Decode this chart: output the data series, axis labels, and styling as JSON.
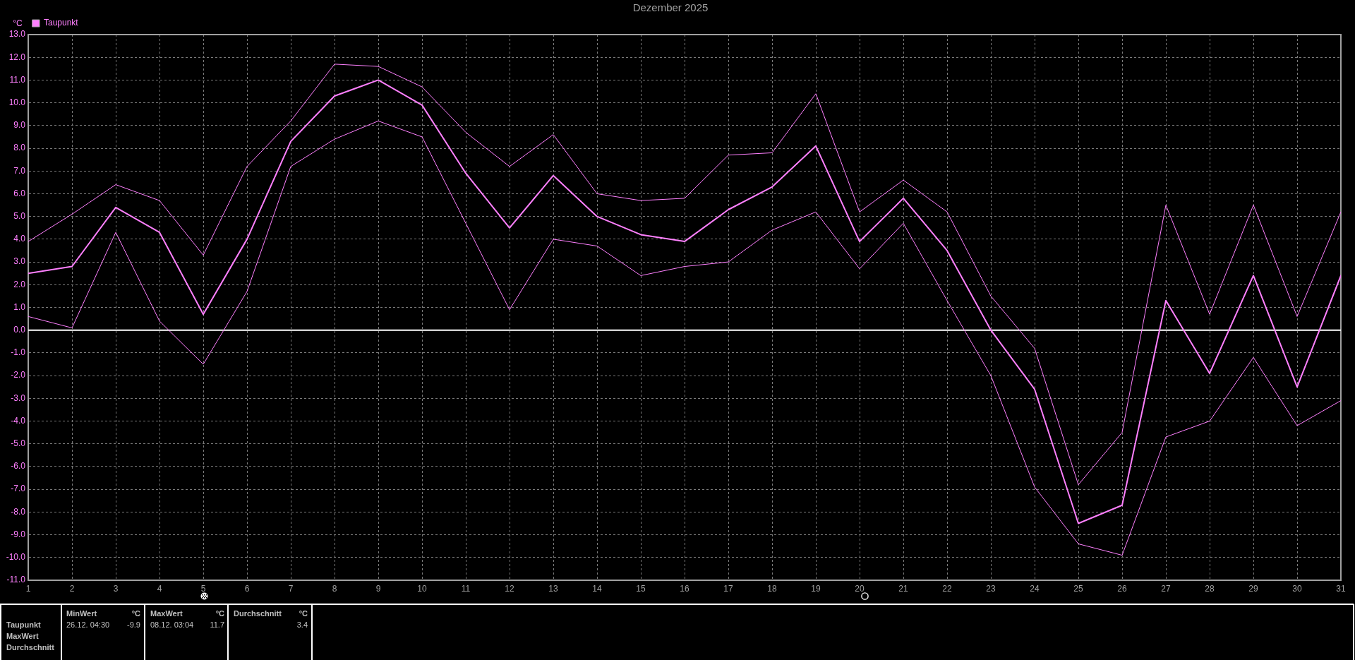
{
  "chart_data": {
    "type": "line",
    "title": "Dezember 2025",
    "ylabel": "°C",
    "x": [
      1,
      2,
      3,
      4,
      5,
      6,
      7,
      8,
      9,
      10,
      11,
      12,
      13,
      14,
      15,
      16,
      17,
      18,
      19,
      20,
      21,
      22,
      23,
      24,
      25,
      26,
      27,
      28,
      29,
      30,
      31
    ],
    "xlim": [
      1,
      31
    ],
    "xticks": [
      1,
      2,
      3,
      4,
      5,
      6,
      7,
      8,
      9,
      10,
      11,
      12,
      13,
      14,
      15,
      16,
      17,
      18,
      19,
      20,
      21,
      22,
      23,
      24,
      25,
      26,
      27,
      28,
      29,
      30,
      31
    ],
    "ylim": [
      -11,
      13
    ],
    "yticks": [
      {
        "value": -11,
        "label": "-11.0"
      },
      {
        "value": -10,
        "label": "-10.0"
      },
      {
        "value": -9,
        "label": "-9.0"
      },
      {
        "value": -8,
        "label": "-8.0"
      },
      {
        "value": -7,
        "label": "-7.0"
      },
      {
        "value": -6,
        "label": "-6.0"
      },
      {
        "value": -5,
        "label": "-5.0"
      },
      {
        "value": -4,
        "label": "-4.0"
      },
      {
        "value": -3,
        "label": "-3.0"
      },
      {
        "value": -2,
        "label": "-2.0"
      },
      {
        "value": -1,
        "label": "-1.0"
      },
      {
        "value": 0,
        "label": "0.0"
      },
      {
        "value": 1,
        "label": "1.0"
      },
      {
        "value": 2,
        "label": "2.0"
      },
      {
        "value": 3,
        "label": "3.0"
      },
      {
        "value": 4,
        "label": "4.0"
      },
      {
        "value": 5,
        "label": "5.0"
      },
      {
        "value": 6,
        "label": "6.0"
      },
      {
        "value": 7,
        "label": "7.0"
      },
      {
        "value": 8,
        "label": "8.0"
      },
      {
        "value": 9,
        "label": "9.0"
      },
      {
        "value": 10,
        "label": "10.0"
      },
      {
        "value": 11,
        "label": "11.0"
      },
      {
        "value": 12,
        "label": "12.0"
      },
      {
        "value": 13,
        "label": "13.0"
      }
    ],
    "series": [
      {
        "name": "Taupunkt",
        "color": "#ff80ff",
        "values": [
          2.5,
          2.8,
          5.4,
          4.3,
          0.7,
          4.0,
          8.3,
          10.3,
          11.0,
          9.9,
          6.9,
          4.5,
          6.8,
          5.0,
          4.2,
          3.9,
          5.3,
          6.3,
          8.1,
          3.9,
          5.8,
          3.5,
          0.0,
          -2.6,
          -8.5,
          -7.7,
          1.3,
          -1.9,
          2.4,
          -2.5,
          2.4
        ]
      },
      {
        "color": "#ff80ff",
        "values": [
          3.9,
          5.1,
          6.4,
          5.7,
          3.3,
          7.2,
          9.2,
          11.7,
          11.6,
          10.7,
          8.7,
          7.2,
          8.6,
          6.0,
          5.7,
          5.8,
          7.7,
          7.8,
          10.4,
          5.2,
          6.6,
          5.2,
          1.5,
          -0.8,
          -6.8,
          -4.5,
          5.5,
          0.7,
          5.5,
          0.6,
          5.2
        ]
      },
      {
        "color": "#ff80ff",
        "values": [
          0.6,
          0.1,
          4.3,
          0.4,
          -1.5,
          1.7,
          7.2,
          8.4,
          9.2,
          8.5,
          4.7,
          0.9,
          4.0,
          3.7,
          2.4,
          2.8,
          3.0,
          4.4,
          5.2,
          2.7,
          4.7,
          1.3,
          -2.0,
          -6.9,
          -9.4,
          -9.9,
          -4.7,
          -4.0,
          -1.2,
          -4.2,
          -3.1
        ]
      }
    ],
    "ref_lines": [
      {
        "axis": "y",
        "value": 0,
        "color": "#ffffff"
      }
    ],
    "grid": true,
    "legend": "top left",
    "annotations": [
      "Taupunkt",
      "MaxWert",
      "Durchschnitt",
      "MinWert",
      "°C",
      "26.12. 04:30",
      "-9.9",
      "MaxWert",
      "°C",
      "08.12. 03:04",
      "11.7",
      "Durchschnitt",
      "°C",
      "3.4"
    ]
  }
}
